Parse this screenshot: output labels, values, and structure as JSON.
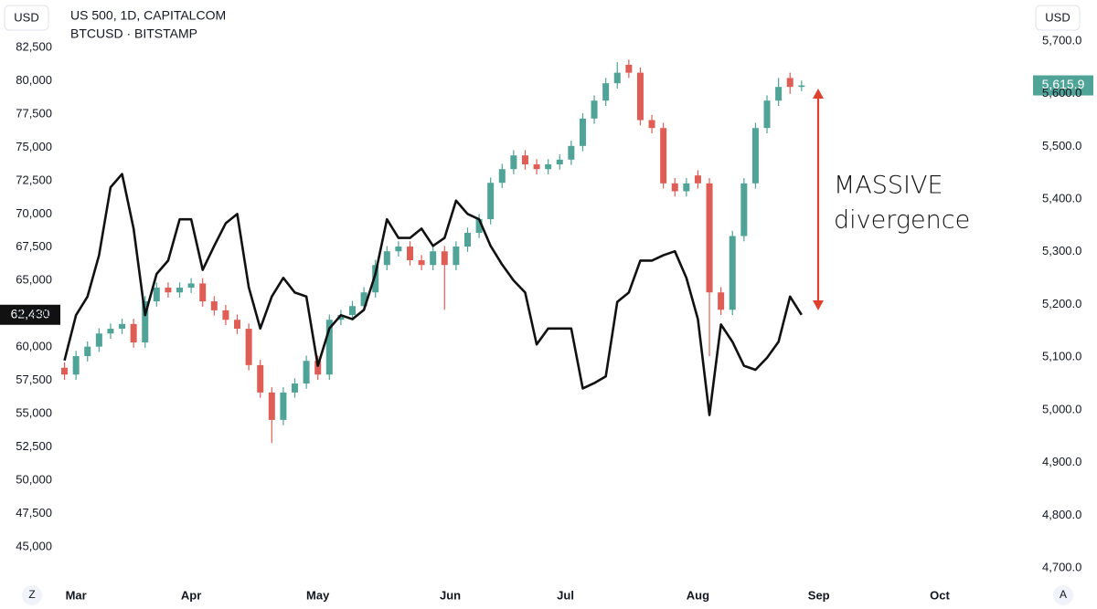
{
  "chart_data": {
    "type": "candlestick",
    "y_label": "USD",
    "y2_label": "USD",
    "grid": false,
    "xlim": [
      -13.2,
      165.4
    ],
    "xticks": [
      {
        "value": 0,
        "label": "Mar"
      },
      {
        "value": 20,
        "label": "Apr"
      },
      {
        "value": 42,
        "label": "May"
      },
      {
        "value": 65,
        "label": "Jun"
      },
      {
        "value": 85,
        "label": "Jul"
      },
      {
        "value": 108,
        "label": "Aug"
      },
      {
        "value": 129,
        "label": "Sep"
      },
      {
        "value": 150,
        "label": "Oct"
      }
    ],
    "ylim": [
      42532,
      86065
    ],
    "yticks": [
      {
        "value": 45000,
        "label": "45,000"
      },
      {
        "value": 47500,
        "label": "47,500"
      },
      {
        "value": 50000,
        "label": "50,000"
      },
      {
        "value": 52500,
        "label": "52,500"
      },
      {
        "value": 55000,
        "label": "55,000"
      },
      {
        "value": 57500,
        "label": "57,500"
      },
      {
        "value": 60000,
        "label": "60,000"
      },
      {
        "value": 62500,
        "label": "62,500"
      },
      {
        "value": 65000,
        "label": "65,000"
      },
      {
        "value": 67500,
        "label": "67,500"
      },
      {
        "value": 70000,
        "label": "70,000"
      },
      {
        "value": 72500,
        "label": "72,500"
      },
      {
        "value": 75000,
        "label": "75,000"
      },
      {
        "value": 77500,
        "label": "77,500"
      },
      {
        "value": 80000,
        "label": "80,000"
      },
      {
        "value": 82500,
        "label": "82,500"
      }
    ],
    "y2lim": [
      4677.5,
      5778
    ],
    "y2ticks": [
      {
        "value": 4700,
        "label": "4,700.0"
      },
      {
        "value": 4800,
        "label": "4,800.0"
      },
      {
        "value": 4900,
        "label": "4,900.0"
      },
      {
        "value": 5000,
        "label": "5,000.0"
      },
      {
        "value": 5100,
        "label": "5,100.0"
      },
      {
        "value": 5200,
        "label": "5,200.0"
      },
      {
        "value": 5300,
        "label": "5,300.0"
      },
      {
        "value": 5400,
        "label": "5,400.0"
      },
      {
        "value": 5500,
        "label": "5,500.0"
      },
      {
        "value": 5600,
        "label": "5,600.0"
      },
      {
        "value": 5700,
        "label": "5,700.0"
      }
    ],
    "x": [
      -2,
      0,
      2,
      4,
      6,
      8,
      10,
      12,
      14,
      16,
      18,
      20,
      22,
      24,
      26,
      28,
      30,
      32,
      34,
      36,
      38,
      40,
      42,
      44,
      46,
      48,
      50,
      52,
      54,
      56,
      58,
      60,
      62,
      64,
      66,
      68,
      70,
      72,
      74,
      76,
      78,
      80,
      82,
      84,
      86,
      88,
      90,
      92,
      94,
      96,
      98,
      100,
      102,
      104,
      106,
      108,
      110,
      112,
      114,
      116,
      118,
      120,
      122,
      124,
      126
    ],
    "series": [
      {
        "name": "US 500, 1D, CAPITALCOM",
        "type": "candlestick",
        "axis": "y2",
        "up_color": "#4fa397",
        "down_color": "#e05d55",
        "open": [
          5080,
          5067,
          5102,
          5120,
          5145,
          5154,
          5163,
          5128,
          5206,
          5232,
          5223,
          5232,
          5240,
          5206,
          5189,
          5171,
          5154,
          5085,
          5033,
          4981,
          5033,
          5050,
          5093,
          5067,
          5171,
          5180,
          5197,
          5223,
          5275,
          5301,
          5310,
          5284,
          5275,
          5301,
          5275,
          5310,
          5336,
          5362,
          5431,
          5457,
          5483,
          5466,
          5457,
          5466,
          5475,
          5501,
          5553,
          5587,
          5620,
          5655,
          5640,
          5550,
          5535,
          5430,
          5415,
          5445,
          5430,
          5223,
          5190,
          5330,
          5430,
          5535,
          5587,
          5630,
          5613
        ],
        "high": [
          5090,
          5112,
          5130,
          5155,
          5164,
          5173,
          5173,
          5216,
          5242,
          5242,
          5242,
          5250,
          5250,
          5216,
          5199,
          5181,
          5164,
          5095,
          5043,
          5043,
          5060,
          5103,
          5103,
          5181,
          5190,
          5207,
          5233,
          5285,
          5311,
          5320,
          5320,
          5294,
          5311,
          5311,
          5320,
          5346,
          5372,
          5441,
          5467,
          5493,
          5493,
          5476,
          5476,
          5485,
          5511,
          5563,
          5597,
          5630,
          5660,
          5665,
          5650,
          5560,
          5545,
          5440,
          5440,
          5455,
          5440,
          5233,
          5340,
          5440,
          5545,
          5597,
          5630,
          5640,
          5625
        ],
        "low": [
          5057,
          5057,
          5092,
          5110,
          5135,
          5144,
          5118,
          5118,
          5196,
          5213,
          5213,
          5222,
          5196,
          5179,
          5161,
          5144,
          5075,
          5023,
          4937,
          4971,
          5023,
          5040,
          5057,
          5057,
          5161,
          5170,
          5187,
          5213,
          5265,
          5291,
          5274,
          5265,
          5265,
          5190,
          5265,
          5300,
          5326,
          5352,
          5421,
          5447,
          5456,
          5447,
          5447,
          5456,
          5465,
          5491,
          5543,
          5577,
          5610,
          5630,
          5540,
          5525,
          5420,
          5405,
          5405,
          5420,
          5102,
          5180,
          5180,
          5320,
          5420,
          5525,
          5577,
          5600,
          5605
        ],
        "close": [
          5067,
          5102,
          5120,
          5145,
          5154,
          5163,
          5128,
          5206,
          5232,
          5223,
          5232,
          5240,
          5206,
          5189,
          5171,
          5154,
          5085,
          5033,
          4981,
          5033,
          5050,
          5093,
          5067,
          5171,
          5180,
          5197,
          5223,
          5275,
          5301,
          5310,
          5284,
          5275,
          5301,
          5275,
          5310,
          5336,
          5362,
          5431,
          5457,
          5483,
          5466,
          5457,
          5466,
          5475,
          5501,
          5553,
          5587,
          5620,
          5640,
          5640,
          5550,
          5535,
          5430,
          5415,
          5430,
          5430,
          5223,
          5190,
          5330,
          5430,
          5535,
          5587,
          5613,
          5613,
          5615.9
        ],
        "last_label": "5,615.9"
      },
      {
        "name": "BTCUSD · BITSTAMP",
        "type": "line",
        "axis": "y",
        "color": "#111111",
        "values": [
          59000,
          62400,
          63800,
          66900,
          72000,
          73000,
          68900,
          62400,
          65500,
          66500,
          69600,
          69600,
          65800,
          67600,
          69300,
          70000,
          64500,
          61400,
          63800,
          65200,
          64100,
          63800,
          58600,
          61400,
          62400,
          62100,
          62800,
          65500,
          69600,
          68200,
          68200,
          68900,
          67600,
          68200,
          71000,
          70000,
          69600,
          67600,
          66200,
          65000,
          64100,
          60200,
          61400,
          61400,
          61400,
          56900,
          57300,
          57800,
          63400,
          64100,
          66500,
          66500,
          66900,
          67200,
          65200,
          62100,
          54900,
          61700,
          60400,
          58600,
          58300,
          59200,
          60400,
          63800,
          62430
        ],
        "last_label": "62,430"
      }
    ],
    "annotation": {
      "text": [
        "MASSIVE",
        "divergence"
      ]
    }
  },
  "toolbar": {
    "left_button": "Z",
    "right_button": "A"
  }
}
